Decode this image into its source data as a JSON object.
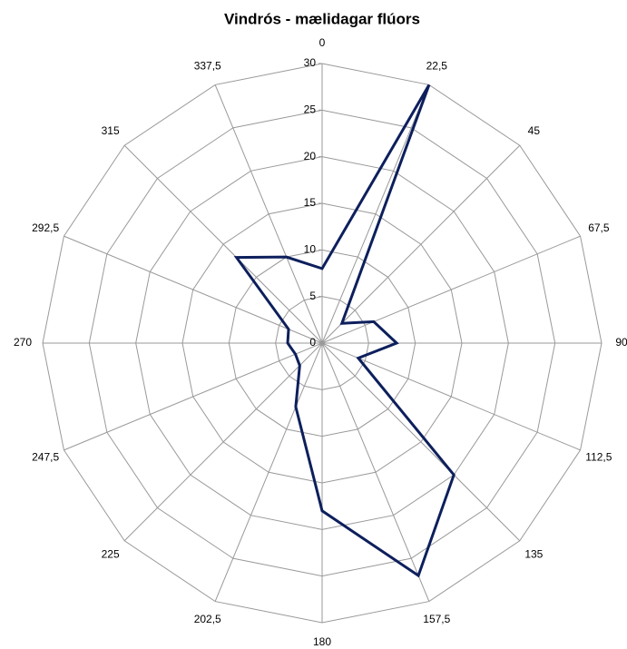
{
  "chart_data": {
    "type": "radar",
    "title": "Vindrós - mælidagar flúors",
    "categories": [
      "0",
      "22,5",
      "45",
      "67,5",
      "90",
      "112,5",
      "135",
      "157,5",
      "180",
      "202,5",
      "225",
      "247,5",
      "270",
      "292,5",
      "315",
      "337,5"
    ],
    "series": [
      {
        "color": "#0d1f5c",
        "values": [
          8,
          30,
          3,
          6,
          8,
          4.2,
          20,
          27,
          18,
          7.4,
          3.4,
          3.1,
          3.7,
          3.9,
          13,
          10
        ]
      }
    ],
    "ylim": [
      0,
      30
    ],
    "yticks": [
      0,
      5,
      10,
      15,
      20,
      25,
      30
    ],
    "grid": true
  }
}
